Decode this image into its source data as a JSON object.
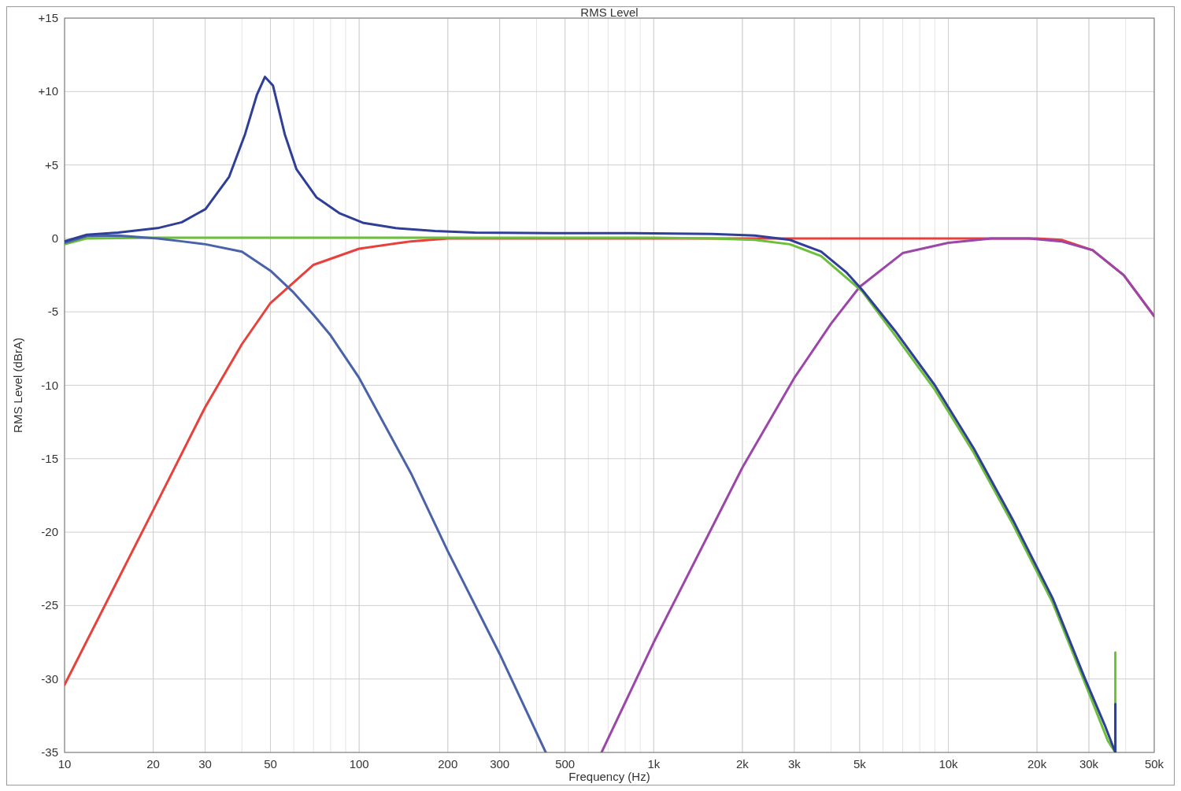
{
  "chart_data": {
    "type": "line",
    "title": "RMS Level",
    "xlabel": "Frequency (Hz)",
    "ylabel": "RMS Level (dBrA)",
    "log": "x",
    "grid": true,
    "line_style": "solid",
    "xlim": [
      10,
      50000
    ],
    "ylim": [
      -35,
      15
    ],
    "xticks": [
      10,
      20,
      30,
      50,
      100,
      200,
      300,
      500,
      {
        "value": 1000,
        "label": "1k"
      },
      {
        "value": 2000,
        "label": "2k"
      },
      {
        "value": 3000,
        "label": "3k"
      },
      {
        "value": 5000,
        "label": "5k"
      },
      {
        "value": 10000,
        "label": "10k"
      },
      {
        "value": 20000,
        "label": "20k"
      },
      {
        "value": 30000,
        "label": "30k"
      },
      {
        "value": 50000,
        "label": "50k"
      }
    ],
    "yticks": [
      {
        "value": 15,
        "label": "+15"
      },
      {
        "value": 10,
        "label": "+10"
      },
      {
        "value": 5,
        "label": "+5"
      },
      0,
      -5,
      -10,
      -15,
      -20,
      -25,
      -30,
      -35
    ],
    "series": [
      {
        "color": "#e8413c",
        "x": [
          10,
          20,
          30,
          40,
          50,
          70,
          100,
          150,
          200,
          500,
          2000,
          10000,
          20000,
          24200,
          30900,
          39400,
          50000
        ],
        "values": [
          -30.4,
          -18.5,
          -11.5,
          -7.2,
          -4.4,
          -1.8,
          -0.7,
          -0.2,
          0,
          0,
          0,
          0,
          0,
          -0.1,
          -0.8,
          -2.5,
          -5.3
        ]
      },
      {
        "color": "#9b46a8",
        "x": [
          665,
          1000,
          2000,
          3000,
          4000,
          5000,
          7000,
          10000,
          14000,
          18800,
          24200,
          30900,
          39400,
          50000
        ],
        "values": [
          -35,
          -27.5,
          -15.6,
          -9.5,
          -5.8,
          -3.3,
          -1,
          -0.3,
          0,
          0,
          -0.2,
          -0.8,
          -2.5,
          -5.3
        ]
      },
      {
        "color": "#6cbf3a",
        "x": [
          10,
          11.9,
          20,
          100,
          500,
          1000,
          1580,
          2200,
          2900,
          3700,
          5100,
          6600,
          9000,
          12200,
          16600,
          22600,
          29000,
          34800,
          36900,
          36900
        ],
        "values": [
          -0.4,
          0,
          0.05,
          0.05,
          0.05,
          0.05,
          0,
          -0.1,
          -0.4,
          -1.2,
          -3.6,
          -6.6,
          -10.3,
          -14.6,
          -19.5,
          -24.8,
          -30.2,
          -34.2,
          -35,
          -28.2
        ]
      },
      {
        "color": "#4a62a8",
        "x": [
          10,
          11.9,
          15.2,
          20.7,
          25,
          30.1,
          40,
          50,
          60,
          70,
          80,
          100,
          150,
          200,
          300,
          430
        ],
        "values": [
          -0.3,
          0.15,
          0.2,
          0,
          -0.2,
          -0.4,
          -0.9,
          -2.2,
          -3.7,
          -5.2,
          -6.6,
          -9.5,
          -16,
          -21.3,
          -28.3,
          -35
        ]
      },
      {
        "color": "#2f3f98",
        "x": [
          10,
          11.9,
          15.2,
          20.7,
          25,
          30.1,
          36.2,
          41,
          45,
          47.9,
          51,
          55.9,
          61.3,
          71.6,
          86,
          103.6,
          133,
          181,
          247,
          457,
          850,
          1580,
          2200,
          2900,
          3700,
          4500,
          5100,
          6600,
          9000,
          12200,
          16600,
          22600,
          29000,
          33900,
          36900,
          36900
        ],
        "values": [
          -0.2,
          0.25,
          0.4,
          0.7,
          1.1,
          2,
          4.2,
          7.1,
          9.8,
          11,
          10.4,
          7.1,
          4.7,
          2.8,
          1.7,
          1.05,
          0.7,
          0.5,
          0.4,
          0.35,
          0.35,
          0.3,
          0.2,
          -0.1,
          -0.9,
          -2.3,
          -3.5,
          -6.3,
          -10,
          -14.3,
          -19.2,
          -24.5,
          -29.9,
          -33.1,
          -35,
          -31.7
        ]
      }
    ]
  }
}
